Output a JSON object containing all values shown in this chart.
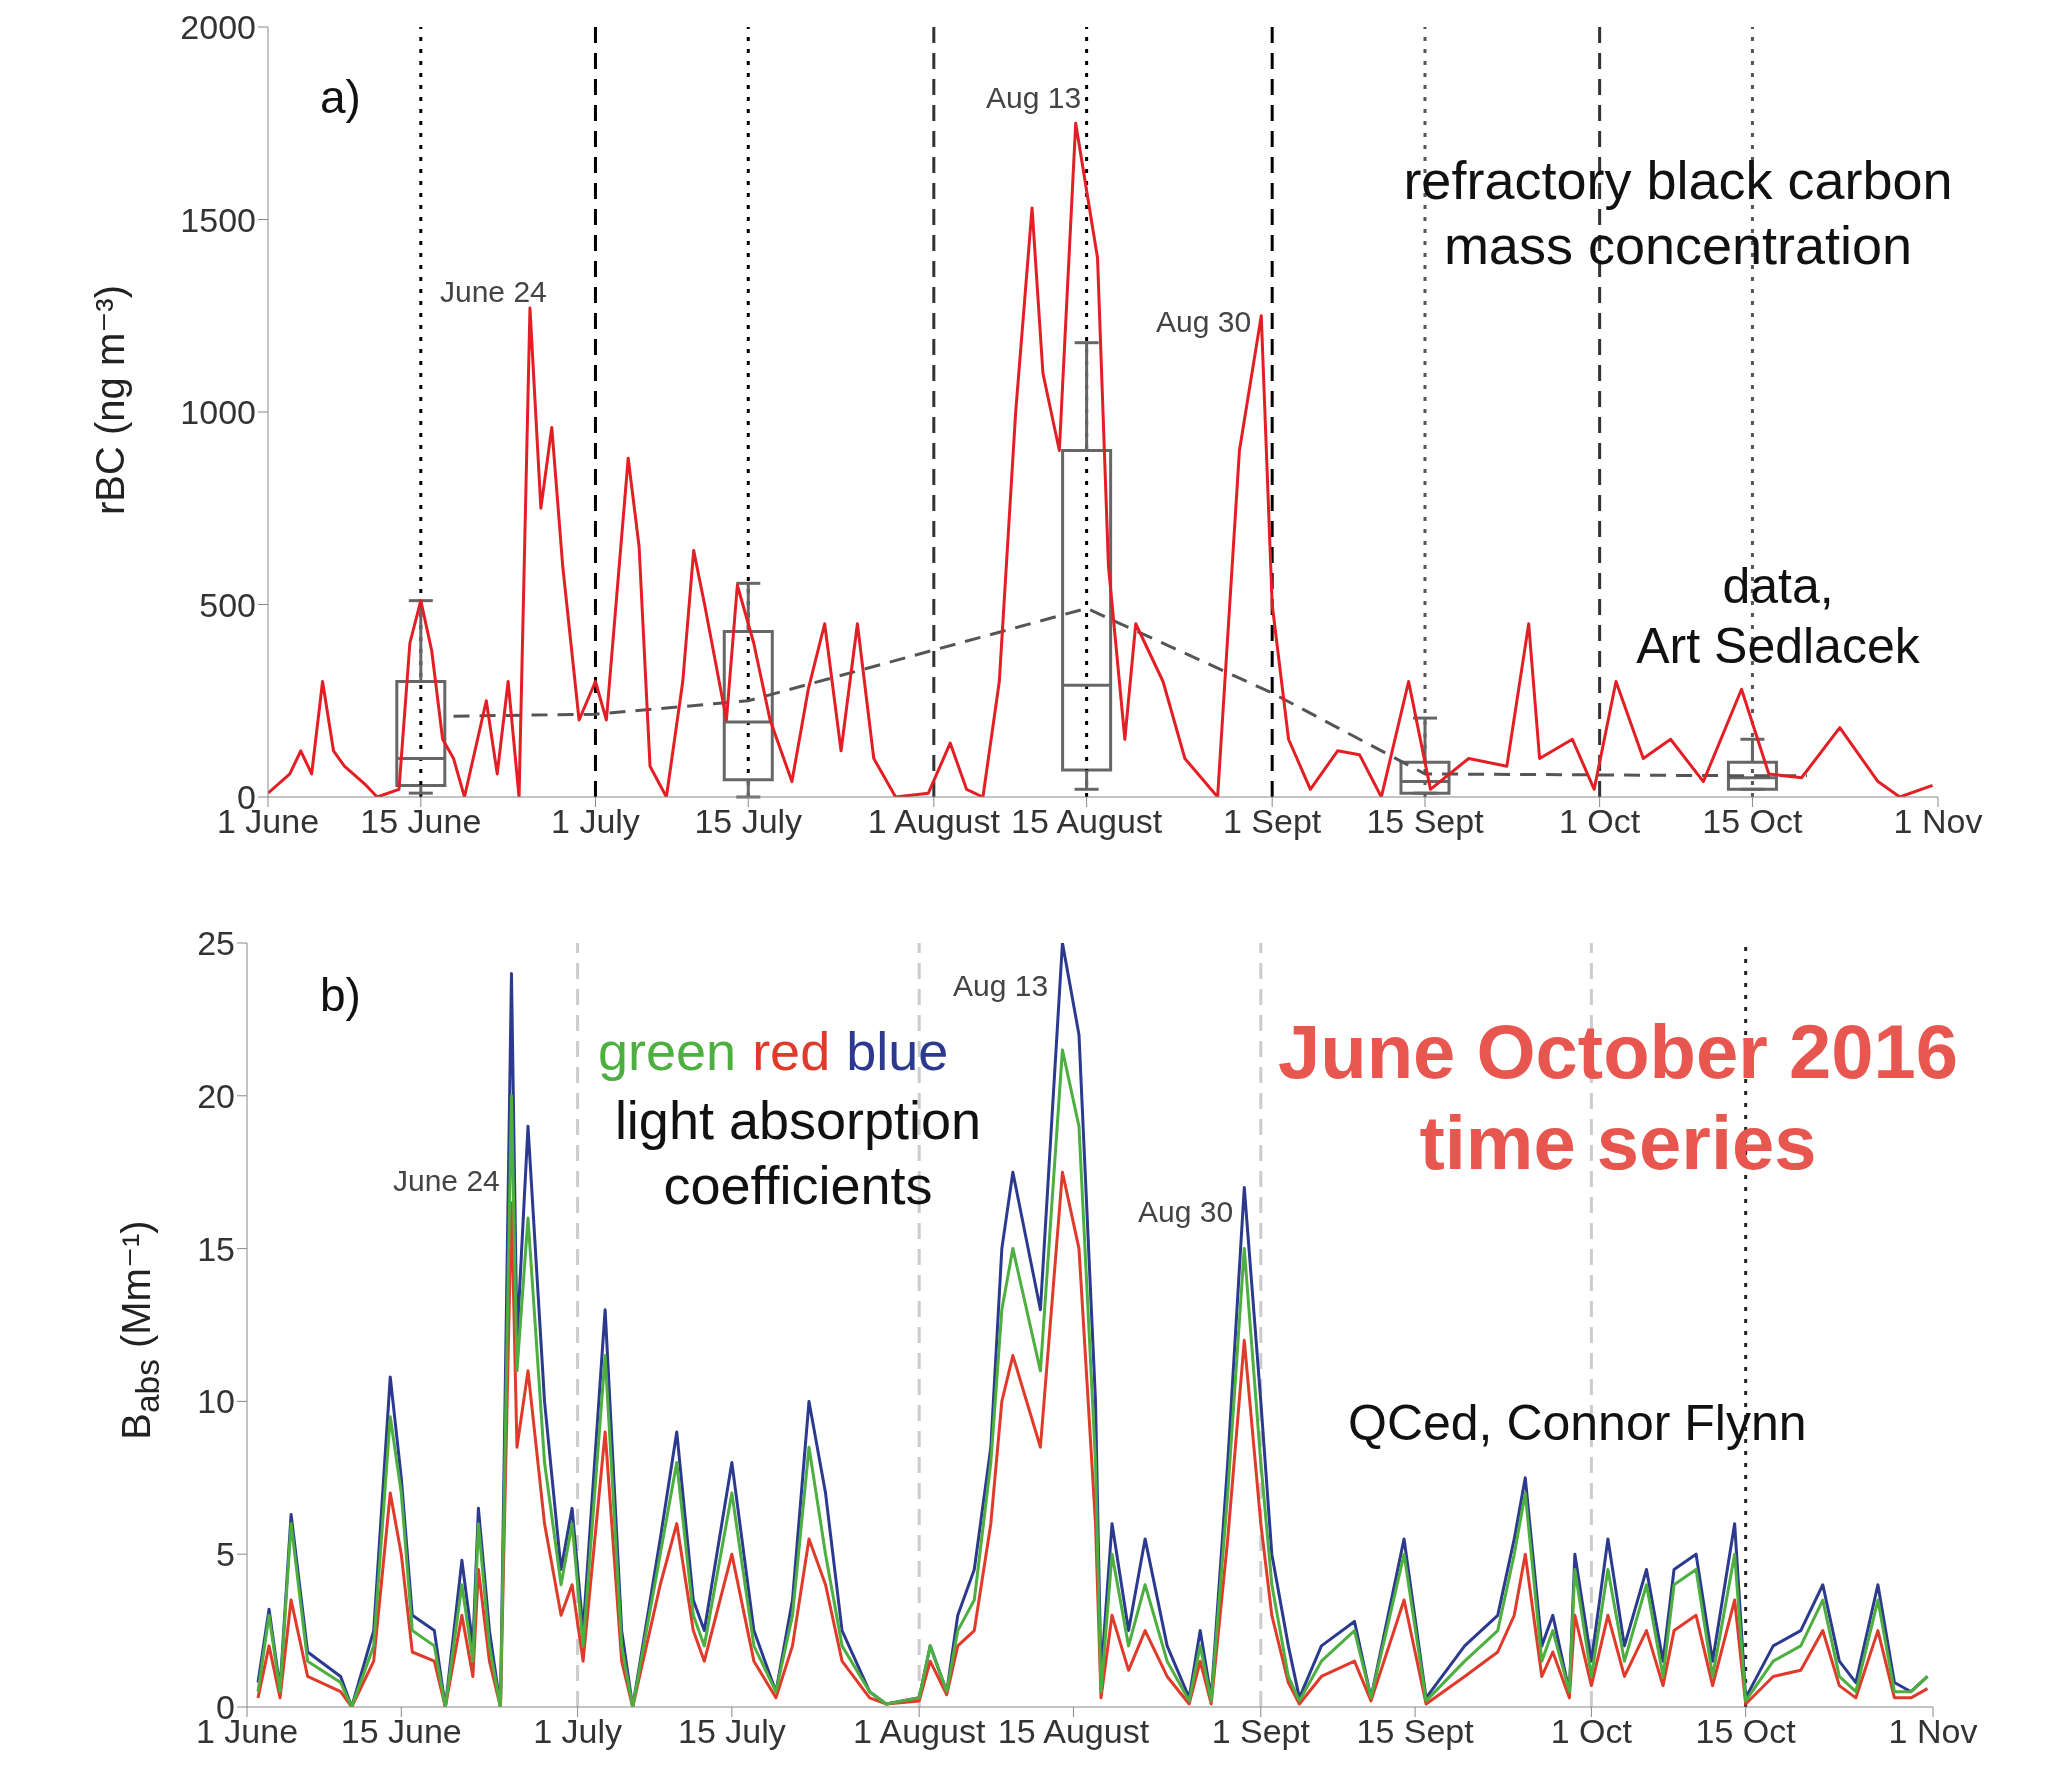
{
  "chart_data": [
    {
      "type": "line",
      "ylabel": "rBC (ng m⁻³)",
      "xlim": [
        "2016-06-01",
        "2016-11-01"
      ],
      "xticks": [
        {
          "value": "2016-06-01",
          "label": "1 June"
        },
        {
          "value": "2016-06-15",
          "label": "15 June"
        },
        {
          "value": "2016-07-01",
          "label": "1 July"
        },
        {
          "value": "2016-07-15",
          "label": "15 July"
        },
        {
          "value": "2016-08-01",
          "label": "1 August"
        },
        {
          "value": "2016-08-15",
          "label": "15 August"
        },
        {
          "value": "2016-09-01",
          "label": "1 Sept"
        },
        {
          "value": "2016-09-15",
          "label": "15 Sept"
        },
        {
          "value": "2016-10-01",
          "label": "1 Oct"
        },
        {
          "value": "2016-10-15",
          "label": "15 Oct"
        },
        {
          "value": "2016-11-01",
          "label": "1 Nov"
        }
      ],
      "ylim": [
        0,
        2000
      ],
      "yticks": [
        0,
        500,
        1000,
        1500,
        2000
      ],
      "series": [
        {
          "color": "#e31e24",
          "x": [
            "2016-06-01",
            "2016-06-03",
            "2016-06-04",
            "2016-06-05",
            "2016-06-06",
            "2016-06-07",
            "2016-06-08",
            "2016-06-10",
            "2016-06-11",
            "2016-06-13",
            "2016-06-14",
            "2016-06-15",
            "2016-06-16",
            "2016-06-17",
            "2016-06-18",
            "2016-06-19",
            "2016-06-21",
            "2016-06-22",
            "2016-06-23",
            "2016-06-24",
            "2016-06-25",
            "2016-06-26",
            "2016-06-27",
            "2016-06-28",
            "2016-06-29T12:00",
            "2016-07-01",
            "2016-07-02",
            "2016-07-04",
            "2016-07-05",
            "2016-07-06",
            "2016-07-07T12:00",
            "2016-07-09",
            "2016-07-10",
            "2016-07-11",
            "2016-07-13",
            "2016-07-14",
            "2016-07-15T12:00",
            "2016-07-17",
            "2016-07-19",
            "2016-07-20T12:00",
            "2016-07-22",
            "2016-07-23T12:00",
            "2016-07-25",
            "2016-07-26T12:00",
            "2016-07-28T12:00",
            "2016-07-31T12:00",
            "2016-08-02T12:00",
            "2016-08-04",
            "2016-08-05T12:00",
            "2016-08-07",
            "2016-08-08T12:00",
            "2016-08-10",
            "2016-08-11",
            "2016-08-12T12:00",
            "2016-08-14",
            "2016-08-16",
            "2016-08-17",
            "2016-08-18T12:00",
            "2016-08-19T12:00",
            "2016-08-22",
            "2016-08-24",
            "2016-08-27",
            "2016-08-29",
            "2016-08-31",
            "2016-09-01",
            "2016-09-02T12:00",
            "2016-09-04T12:00",
            "2016-09-07",
            "2016-09-09",
            "2016-09-11",
            "2016-09-13T12:00",
            "2016-09-15T12:00",
            "2016-09-19",
            "2016-09-22T12:00",
            "2016-09-24T12:00",
            "2016-09-25T12:00",
            "2016-09-28T12:00",
            "2016-09-30T12:00",
            "2016-10-02T12:00",
            "2016-10-05",
            "2016-10-07T12:00",
            "2016-10-10T12:00",
            "2016-10-14",
            "2016-10-16T12:00",
            "2016-10-19T12:00",
            "2016-10-23",
            "2016-10-26T12:00",
            "2016-10-28T12:00",
            "2016-10-31T12:00"
          ],
          "values": [
            10,
            60,
            120,
            60,
            300,
            120,
            80,
            30,
            0,
            20,
            400,
            510,
            380,
            150,
            100,
            0,
            250,
            60,
            300,
            0,
            1270,
            750,
            960,
            600,
            200,
            300,
            200,
            880,
            650,
            80,
            0,
            300,
            640,
            500,
            200,
            550,
            400,
            200,
            40,
            280,
            450,
            120,
            450,
            100,
            0,
            10,
            140,
            20,
            0,
            300,
            1000,
            1530,
            1100,
            900,
            1750,
            1400,
            600,
            150,
            450,
            300,
            100,
            0,
            900,
            1250,
            500,
            150,
            20,
            120,
            110,
            0,
            300,
            20,
            100,
            80,
            450,
            100,
            150,
            20,
            300,
            100,
            150,
            40,
            280,
            60,
            50,
            180,
            40,
            0,
            30
          ]
        },
        {
          "type": "line",
          "color": "#555555",
          "line_style": "dashed",
          "x": [
            "2016-06-18",
            "2016-07-01",
            "2016-07-15",
            "2016-08-15",
            "2016-09-01",
            "2016-09-15",
            "2016-10-15",
            "2016-10-20"
          ],
          "values": [
            210,
            215,
            250,
            490,
            270,
            60,
            55,
            55
          ]
        },
        {
          "type": "box",
          "color": "#666666",
          "x": [
            "2016-06-15",
            "2016-07-15",
            "2016-08-15",
            "2016-09-15",
            "2016-10-15"
          ],
          "boxes": [
            {
              "low": 10,
              "q1": 30,
              "median": 100,
              "q3": 300,
              "high": 510
            },
            {
              "low": 0,
              "q1": 45,
              "median": 195,
              "q3": 430,
              "high": 555
            },
            {
              "low": 20,
              "q1": 70,
              "median": 290,
              "q3": 900,
              "high": 1180
            },
            {
              "low": 10,
              "q1": 10,
              "median": 40,
              "q3": 90,
              "high": 205
            },
            {
              "low": 20,
              "q1": 20,
              "median": 50,
              "q3": 90,
              "high": 150
            }
          ]
        }
      ],
      "ref_lines": [
        {
          "axis": "x",
          "value": "2016-07-01",
          "color": "#000000",
          "line_style": "dashed"
        },
        {
          "axis": "x",
          "value": "2016-08-01",
          "color": "#333333",
          "line_style": "dashed"
        },
        {
          "axis": "x",
          "value": "2016-09-01",
          "color": "#000000",
          "line_style": "dashed"
        },
        {
          "axis": "x",
          "value": "2016-10-01",
          "color": "#333333",
          "line_style": "dashed"
        },
        {
          "axis": "x",
          "value": "2016-06-15",
          "color": "#000000",
          "line_style": "dotted"
        },
        {
          "axis": "x",
          "value": "2016-07-15",
          "color": "#000000",
          "line_style": "dotted"
        },
        {
          "axis": "x",
          "value": "2016-08-15",
          "color": "#000000",
          "line_style": "dotted"
        },
        {
          "axis": "x",
          "value": "2016-09-15",
          "color": "#555555",
          "line_style": "dotted"
        },
        {
          "axis": "x",
          "value": "2016-10-15",
          "color": "#555555",
          "line_style": "dotted"
        }
      ],
      "annotations": [
        "a)",
        "refractory black carbon\nmass concentration",
        "data,\nArt Sedlacek",
        "June 24",
        "Aug 13",
        "Aug 30"
      ]
    },
    {
      "type": "line",
      "ylabel": "B$_{abs}$ (Mm⁻¹)",
      "legend": "top",
      "xlim": [
        "2016-06-01",
        "2016-11-01"
      ],
      "xticks": [
        {
          "value": "2016-06-01",
          "label": "1 June"
        },
        {
          "value": "2016-06-15",
          "label": "15 June"
        },
        {
          "value": "2016-07-01",
          "label": "1 July"
        },
        {
          "value": "2016-07-15",
          "label": "15 July"
        },
        {
          "value": "2016-08-01",
          "label": "1 August"
        },
        {
          "value": "2016-08-15",
          "label": "15 August"
        },
        {
          "value": "2016-09-01",
          "label": "1 Sept"
        },
        {
          "value": "2016-09-15",
          "label": "15 Sept"
        },
        {
          "value": "2016-10-01",
          "label": "1 Oct"
        },
        {
          "value": "2016-10-15",
          "label": "15 Oct"
        },
        {
          "value": "2016-11-01",
          "label": "1 Nov"
        }
      ],
      "ylim": [
        0,
        25
      ],
      "yticks": [
        0,
        5,
        10,
        15,
        20,
        25
      ],
      "x": [
        "2016-06-02",
        "2016-06-03",
        "2016-06-04",
        "2016-06-05",
        "2016-06-06T12:00",
        "2016-06-09T12:00",
        "2016-06-10T12:00",
        "2016-06-12T12:00",
        "2016-06-14",
        "2016-06-15",
        "2016-06-16",
        "2016-06-18",
        "2016-06-19",
        "2016-06-20T12:00",
        "2016-06-21T12:00",
        "2016-06-22",
        "2016-06-23",
        "2016-06-24",
        "2016-06-25",
        "2016-06-25T12:00",
        "2016-06-26T12:00",
        "2016-06-28",
        "2016-06-29T12:00",
        "2016-06-30T12:00",
        "2016-07-01T12:00",
        "2016-07-03T12:00",
        "2016-07-05",
        "2016-07-06",
        "2016-07-08T12:00",
        "2016-07-10",
        "2016-07-11T12:00",
        "2016-07-12T12:00",
        "2016-07-15",
        "2016-07-17",
        "2016-07-19",
        "2016-07-20T12:00",
        "2016-07-22",
        "2016-07-23T12:00",
        "2016-07-25",
        "2016-07-27T12:00",
        "2016-07-29",
        "2016-08-01",
        "2016-08-02",
        "2016-08-03T12:00",
        "2016-08-04T12:00",
        "2016-08-06",
        "2016-08-07T12:00",
        "2016-08-08T12:00",
        "2016-08-09T12:00",
        "2016-08-12",
        "2016-08-14",
        "2016-08-15T12:00",
        "2016-08-17",
        "2016-08-17T12:00",
        "2016-08-18T12:00",
        "2016-08-20",
        "2016-08-21T12:00",
        "2016-08-23T12:00",
        "2016-08-25T12:00",
        "2016-08-26T12:00",
        "2016-08-27T12:00",
        "2016-08-29",
        "2016-08-30T12:00",
        "2016-09-01",
        "2016-09-02",
        "2016-09-03T12:00",
        "2016-09-04T12:00",
        "2016-09-06T12:00",
        "2016-09-09T12:00",
        "2016-09-11",
        "2016-09-14",
        "2016-09-16",
        "2016-09-19T12:00",
        "2016-09-22T12:00",
        "2016-09-24",
        "2016-09-25",
        "2016-09-26T12:00",
        "2016-09-27T12:00",
        "2016-09-29",
        "2016-09-29T12:00",
        "2016-10-01",
        "2016-10-02T12:00",
        "2016-10-04",
        "2016-10-06",
        "2016-10-07T12:00",
        "2016-10-08T12:00",
        "2016-10-10T12:00",
        "2016-10-12",
        "2016-10-14",
        "2016-10-15",
        "2016-10-17T12:00",
        "2016-10-20",
        "2016-10-22",
        "2016-10-23T12:00",
        "2016-10-25",
        "2016-10-27",
        "2016-10-28T12:00",
        "2016-10-30",
        "2016-10-31T12:00"
      ],
      "series": [
        {
          "name": "green",
          "color": "#4caf3f",
          "values": [
            0.5,
            3,
            0.5,
            6,
            1.5,
            0.8,
            0,
            2,
            9.5,
            7,
            2.5,
            2,
            0,
            4,
            1.5,
            6,
            2,
            0,
            20,
            11,
            16,
            8,
            4,
            6,
            2,
            11.5,
            2,
            0,
            5,
            8,
            3,
            2,
            7,
            2,
            0.5,
            3,
            8.5,
            5,
            2,
            0.5,
            0.1,
            0.3,
            2,
            0.5,
            2.5,
            3.5,
            8,
            13,
            15,
            11,
            21.5,
            19,
            8,
            0.5,
            5,
            2,
            4,
            1.5,
            0.2,
            2,
            0.2,
            7,
            15,
            8,
            4,
            1,
            0.2,
            1.5,
            2.5,
            0.3,
            5,
            0.2,
            1.5,
            2.5,
            5,
            7,
            1.5,
            2.5,
            0.5,
            4.5,
            1,
            4.5,
            1.5,
            4,
            1,
            4,
            4.5,
            1,
            5,
            0.2,
            1.5,
            2,
            3.5,
            1,
            0.5,
            3.5,
            0.5,
            0.5,
            1
          ]
        },
        {
          "name": "red",
          "color": "#e03a2a",
          "values": [
            0.3,
            2,
            0.3,
            3.5,
            1,
            0.5,
            0,
            1.5,
            7,
            5,
            1.8,
            1.5,
            0,
            3,
            1,
            4.5,
            1.5,
            0,
            16.5,
            8.5,
            11,
            6,
            3,
            4,
            1.5,
            9,
            1.5,
            0,
            4,
            6,
            2.5,
            1.5,
            5,
            1.5,
            0.3,
            2,
            5.5,
            4,
            1.5,
            0.3,
            0.1,
            0.2,
            1.5,
            0.4,
            2,
            2.5,
            6,
            10,
            11.5,
            8.5,
            17.5,
            15,
            6,
            0.3,
            3,
            1.2,
            2.5,
            1,
            0.1,
            1.5,
            0.1,
            5.5,
            12,
            6,
            3,
            0.8,
            0.1,
            1,
            1.5,
            0.2,
            3.5,
            0.1,
            1,
            1.8,
            3,
            5,
            1,
            1.8,
            0.3,
            3,
            0.7,
            3,
            1,
            2.5,
            0.7,
            2.5,
            3,
            0.7,
            3.5,
            0.1,
            1,
            1.2,
            2.5,
            0.7,
            0.3,
            2.5,
            0.3,
            0.3,
            0.6
          ]
        },
        {
          "name": "blue",
          "color": "#2b3a8f",
          "values": [
            0.8,
            3.2,
            0.6,
            6.3,
            1.8,
            1,
            0,
            2.5,
            10.8,
            7.5,
            3,
            2.5,
            0,
            4.8,
            2,
            6.5,
            2.5,
            0,
            24,
            12,
            19,
            10,
            4.5,
            6.5,
            2.5,
            13,
            2.5,
            0,
            5.5,
            9,
            3.5,
            2.5,
            8,
            2.5,
            0.5,
            3.5,
            10,
            7,
            2.5,
            0.5,
            0.1,
            0.3,
            2,
            0.5,
            3,
            4.5,
            8.5,
            15,
            17.5,
            13,
            25,
            22,
            10,
            1,
            6,
            2.5,
            5.5,
            2,
            0.3,
            2.5,
            0.3,
            8,
            17,
            10,
            5,
            2,
            0.3,
            2,
            2.8,
            0.3,
            5.5,
            0.3,
            2,
            3,
            5.5,
            7.5,
            2,
            3,
            0.5,
            5,
            1.5,
            5.5,
            2,
            4.5,
            1.5,
            4.5,
            5,
            1.5,
            6,
            0.3,
            2,
            2.5,
            4,
            1.5,
            0.8,
            4,
            0.8,
            0.5,
            1
          ]
        }
      ],
      "ref_lines": [
        {
          "axis": "x",
          "value": "2016-07-01",
          "color": "#cccccc",
          "line_style": "dashed"
        },
        {
          "axis": "x",
          "value": "2016-08-01",
          "color": "#cccccc",
          "line_style": "dashed"
        },
        {
          "axis": "x",
          "value": "2016-09-01",
          "color": "#cccccc",
          "line_style": "dashed"
        },
        {
          "axis": "x",
          "value": "2016-10-01",
          "color": "#cccccc",
          "line_style": "dashed"
        },
        {
          "axis": "x",
          "value": "2016-10-15",
          "color": "#222222",
          "line_style": "dotted"
        }
      ],
      "annotations": [
        "b)",
        "light absorption\ncoefficients",
        "June October 2016\ntime series",
        "QCed, Connor Flynn",
        "June 24",
        "Aug 13",
        "Aug 30"
      ]
    }
  ]
}
